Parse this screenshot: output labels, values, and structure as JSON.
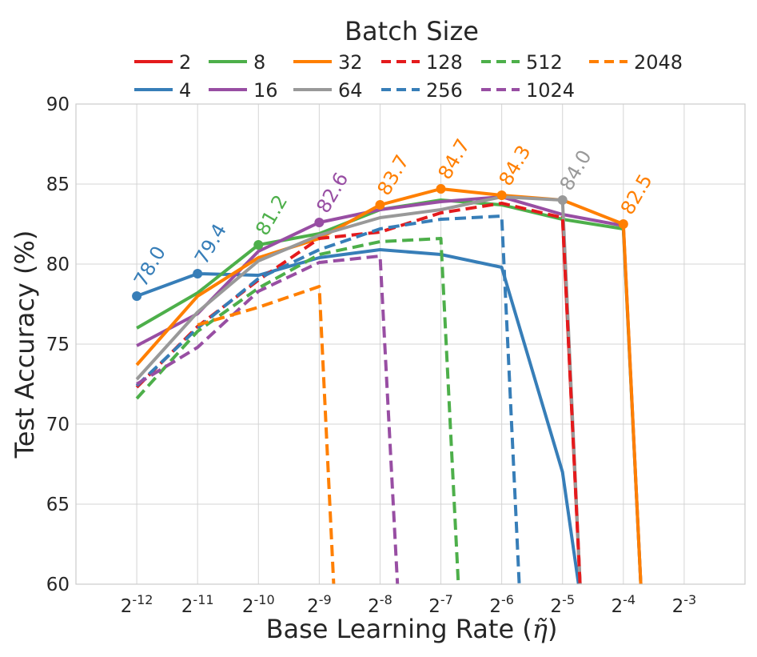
{
  "chart_data": {
    "type": "line",
    "title": "",
    "legend_title": "Batch Size",
    "legend_position": "top",
    "xlabel": "Base Learning Rate (",
    "xlabel_symbol": "η̃",
    "xlabel_close": ")",
    "ylabel": "Test Accuracy (%)",
    "x_base": "2",
    "x_exponents": [
      -12,
      -11,
      -10,
      -9,
      -8,
      -7,
      -6,
      -5,
      -4,
      -3
    ],
    "x_tick_exponents": [
      "-12",
      "-11",
      "-10",
      "-9",
      "-8",
      "-7",
      "-6",
      "-5",
      "-4",
      "-3"
    ],
    "xlim": [
      -13,
      -2
    ],
    "ylim": [
      60,
      90
    ],
    "y_ticks": [
      "60",
      "65",
      "70",
      "75",
      "80",
      "85",
      "90"
    ],
    "grid": true,
    "series": [
      {
        "name": "2",
        "color": "#e41a1c",
        "dash": "solid",
        "x": [
          -5,
          -4.7
        ],
        "y": [
          83.0,
          59.0
        ]
      },
      {
        "name": "4",
        "color": "#377eb8",
        "dash": "solid",
        "x": [
          -12,
          -11,
          -10,
          -9,
          -8,
          -7,
          -6,
          -5,
          -4.7
        ],
        "y": [
          78.0,
          79.4,
          79.3,
          80.4,
          80.9,
          80.6,
          79.8,
          67.0,
          59.0
        ]
      },
      {
        "name": "8",
        "color": "#4daf4a",
        "dash": "solid",
        "x": [
          -12,
          -11,
          -10,
          -9,
          -8,
          -7,
          -6,
          -5,
          -4,
          -3.7
        ],
        "y": [
          76.0,
          78.2,
          81.2,
          81.9,
          83.4,
          84.0,
          83.7,
          82.8,
          82.2,
          59.0
        ]
      },
      {
        "name": "16",
        "color": "#984ea3",
        "dash": "solid",
        "x": [
          -12,
          -11,
          -10,
          -9,
          -8,
          -7,
          -6,
          -5,
          -4,
          -3.7
        ],
        "y": [
          74.9,
          76.9,
          80.8,
          82.6,
          83.4,
          83.9,
          84.2,
          83.1,
          82.4,
          59.0
        ]
      },
      {
        "name": "32",
        "color": "#ff7f00",
        "dash": "solid",
        "x": [
          -12,
          -11,
          -10,
          -9,
          -8,
          -7,
          -6,
          -5,
          -4,
          -3.7
        ],
        "y": [
          73.7,
          78.0,
          80.4,
          81.6,
          83.7,
          84.7,
          84.3,
          84.0,
          82.5,
          59.0
        ]
      },
      {
        "name": "64",
        "color": "#999999",
        "dash": "solid",
        "x": [
          -12,
          -11,
          -10,
          -9,
          -8,
          -7,
          -6,
          -5,
          -4.7
        ],
        "y": [
          72.8,
          77.0,
          80.2,
          81.8,
          82.9,
          83.4,
          84.2,
          84.0,
          59.0
        ]
      },
      {
        "name": "128",
        "color": "#e41a1c",
        "dash": "dashed",
        "x": [
          -12,
          -11,
          -10,
          -9,
          -8,
          -7,
          -6,
          -5,
          -4.7
        ],
        "y": [
          72.3,
          76.1,
          79.0,
          81.6,
          82.0,
          83.2,
          83.8,
          82.9,
          59.0
        ]
      },
      {
        "name": "256",
        "color": "#377eb8",
        "dash": "dashed",
        "x": [
          -12,
          -11,
          -10,
          -9,
          -8,
          -7,
          -6,
          -5.7
        ],
        "y": [
          72.4,
          76.0,
          79.1,
          80.9,
          82.2,
          82.8,
          83.0,
          59.0
        ]
      },
      {
        "name": "512",
        "color": "#4daf4a",
        "dash": "dashed",
        "x": [
          -12,
          -11,
          -10,
          -9,
          -8,
          -7,
          -6.7
        ],
        "y": [
          71.6,
          75.8,
          78.5,
          80.6,
          81.4,
          81.6,
          59.0
        ]
      },
      {
        "name": "1024",
        "color": "#984ea3",
        "dash": "dashed",
        "x": [
          -12,
          -11,
          -10,
          -9,
          -8,
          -7.7
        ],
        "y": [
          72.5,
          74.8,
          78.3,
          80.1,
          80.5,
          59.0
        ]
      },
      {
        "name": "2048",
        "color": "#ff7f00",
        "dash": "dashed",
        "x": [
          -11,
          -10,
          -9,
          -8.75
        ],
        "y": [
          76.2,
          77.3,
          78.6,
          59.0
        ]
      }
    ],
    "annotations": [
      {
        "text": "78.0",
        "x": -12,
        "y": 78.0,
        "color": "#377eb8"
      },
      {
        "text": "79.4",
        "x": -11,
        "y": 79.4,
        "color": "#377eb8"
      },
      {
        "text": "81.2",
        "x": -10,
        "y": 81.2,
        "color": "#4daf4a"
      },
      {
        "text": "82.6",
        "x": -9,
        "y": 82.6,
        "color": "#984ea3"
      },
      {
        "text": "83.7",
        "x": -8,
        "y": 83.7,
        "color": "#ff7f00"
      },
      {
        "text": "84.7",
        "x": -7,
        "y": 84.7,
        "color": "#ff7f00"
      },
      {
        "text": "84.3",
        "x": -6,
        "y": 84.3,
        "color": "#ff7f00"
      },
      {
        "text": "84.0",
        "x": -5,
        "y": 84.0,
        "color": "#999999"
      },
      {
        "text": "82.5",
        "x": -4,
        "y": 82.5,
        "color": "#ff7f00"
      }
    ]
  }
}
